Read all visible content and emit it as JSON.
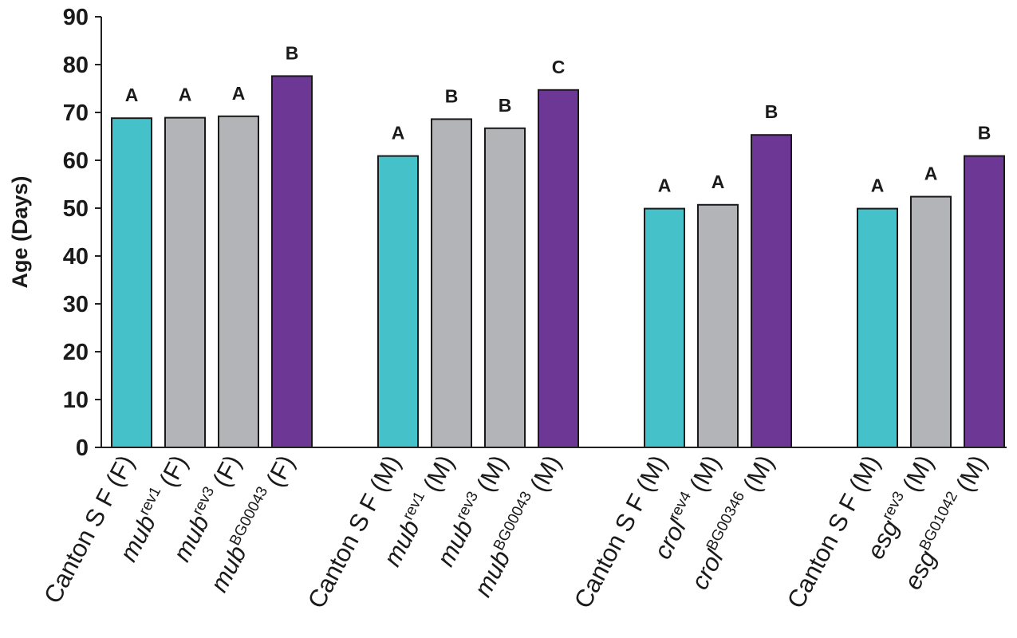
{
  "chart_data": {
    "type": "bar",
    "ylabel": "Age (Days)",
    "ylim": [
      0,
      90
    ],
    "yticks": [
      0,
      10,
      20,
      30,
      40,
      50,
      60,
      70,
      80,
      90
    ],
    "grid": false,
    "colors": {
      "control": "#45c2c9",
      "revertant": "#b3b4b7",
      "mutant": "#6d3795"
    },
    "groups": [
      {
        "bars": [
          {
            "label": {
              "gene": "Canton S",
              "allele": "",
              "rest": "F (F)"
            },
            "value": 68.8,
            "kind": "control",
            "sig": "A"
          },
          {
            "label": {
              "gene": "mub",
              "allele": "rev1",
              "rest": " (F)"
            },
            "value": 68.9,
            "kind": "revertant",
            "sig": "A"
          },
          {
            "label": {
              "gene": "mub",
              "allele": "rev3",
              "rest": " (F)"
            },
            "value": 69.2,
            "kind": "revertant",
            "sig": "A"
          },
          {
            "label": {
              "gene": "mub",
              "allele": "BG00043",
              "rest": " (F)"
            },
            "value": 77.6,
            "kind": "mutant",
            "sig": "B"
          }
        ]
      },
      {
        "bars": [
          {
            "label": {
              "gene": "Canton S",
              "allele": "",
              "rest": "F (M)"
            },
            "value": 60.9,
            "kind": "control",
            "sig": "A"
          },
          {
            "label": {
              "gene": "mub",
              "allele": "rev1",
              "rest": " (M)"
            },
            "value": 68.6,
            "kind": "revertant",
            "sig": "B"
          },
          {
            "label": {
              "gene": "mub",
              "allele": "rev3",
              "rest": " (M)"
            },
            "value": 66.7,
            "kind": "revertant",
            "sig": "B"
          },
          {
            "label": {
              "gene": "mub",
              "allele": "BG00043",
              "rest": " (M)"
            },
            "value": 74.7,
            "kind": "mutant",
            "sig": "C"
          }
        ]
      },
      {
        "bars": [
          {
            "label": {
              "gene": "Canton S",
              "allele": "",
              "rest": "F (M)"
            },
            "value": 49.9,
            "kind": "control",
            "sig": "A"
          },
          {
            "label": {
              "gene": "crol",
              "allele": "rev4",
              "rest": " (M)"
            },
            "value": 50.7,
            "kind": "revertant",
            "sig": "A"
          },
          {
            "label": {
              "gene": "crol",
              "allele": "BG00346",
              "rest": " (M)"
            },
            "value": 65.3,
            "kind": "mutant",
            "sig": "B"
          }
        ]
      },
      {
        "bars": [
          {
            "label": {
              "gene": "Canton S",
              "allele": "",
              "rest": "F (M)"
            },
            "value": 49.9,
            "kind": "control",
            "sig": "A"
          },
          {
            "label": {
              "gene": "esg",
              "allele": "rev3",
              "rest": " (M)"
            },
            "value": 52.4,
            "kind": "revertant",
            "sig": "A"
          },
          {
            "label": {
              "gene": "esg",
              "allele": "BG01042",
              "rest": " (M)"
            },
            "value": 60.9,
            "kind": "mutant",
            "sig": "B"
          }
        ]
      }
    ]
  }
}
